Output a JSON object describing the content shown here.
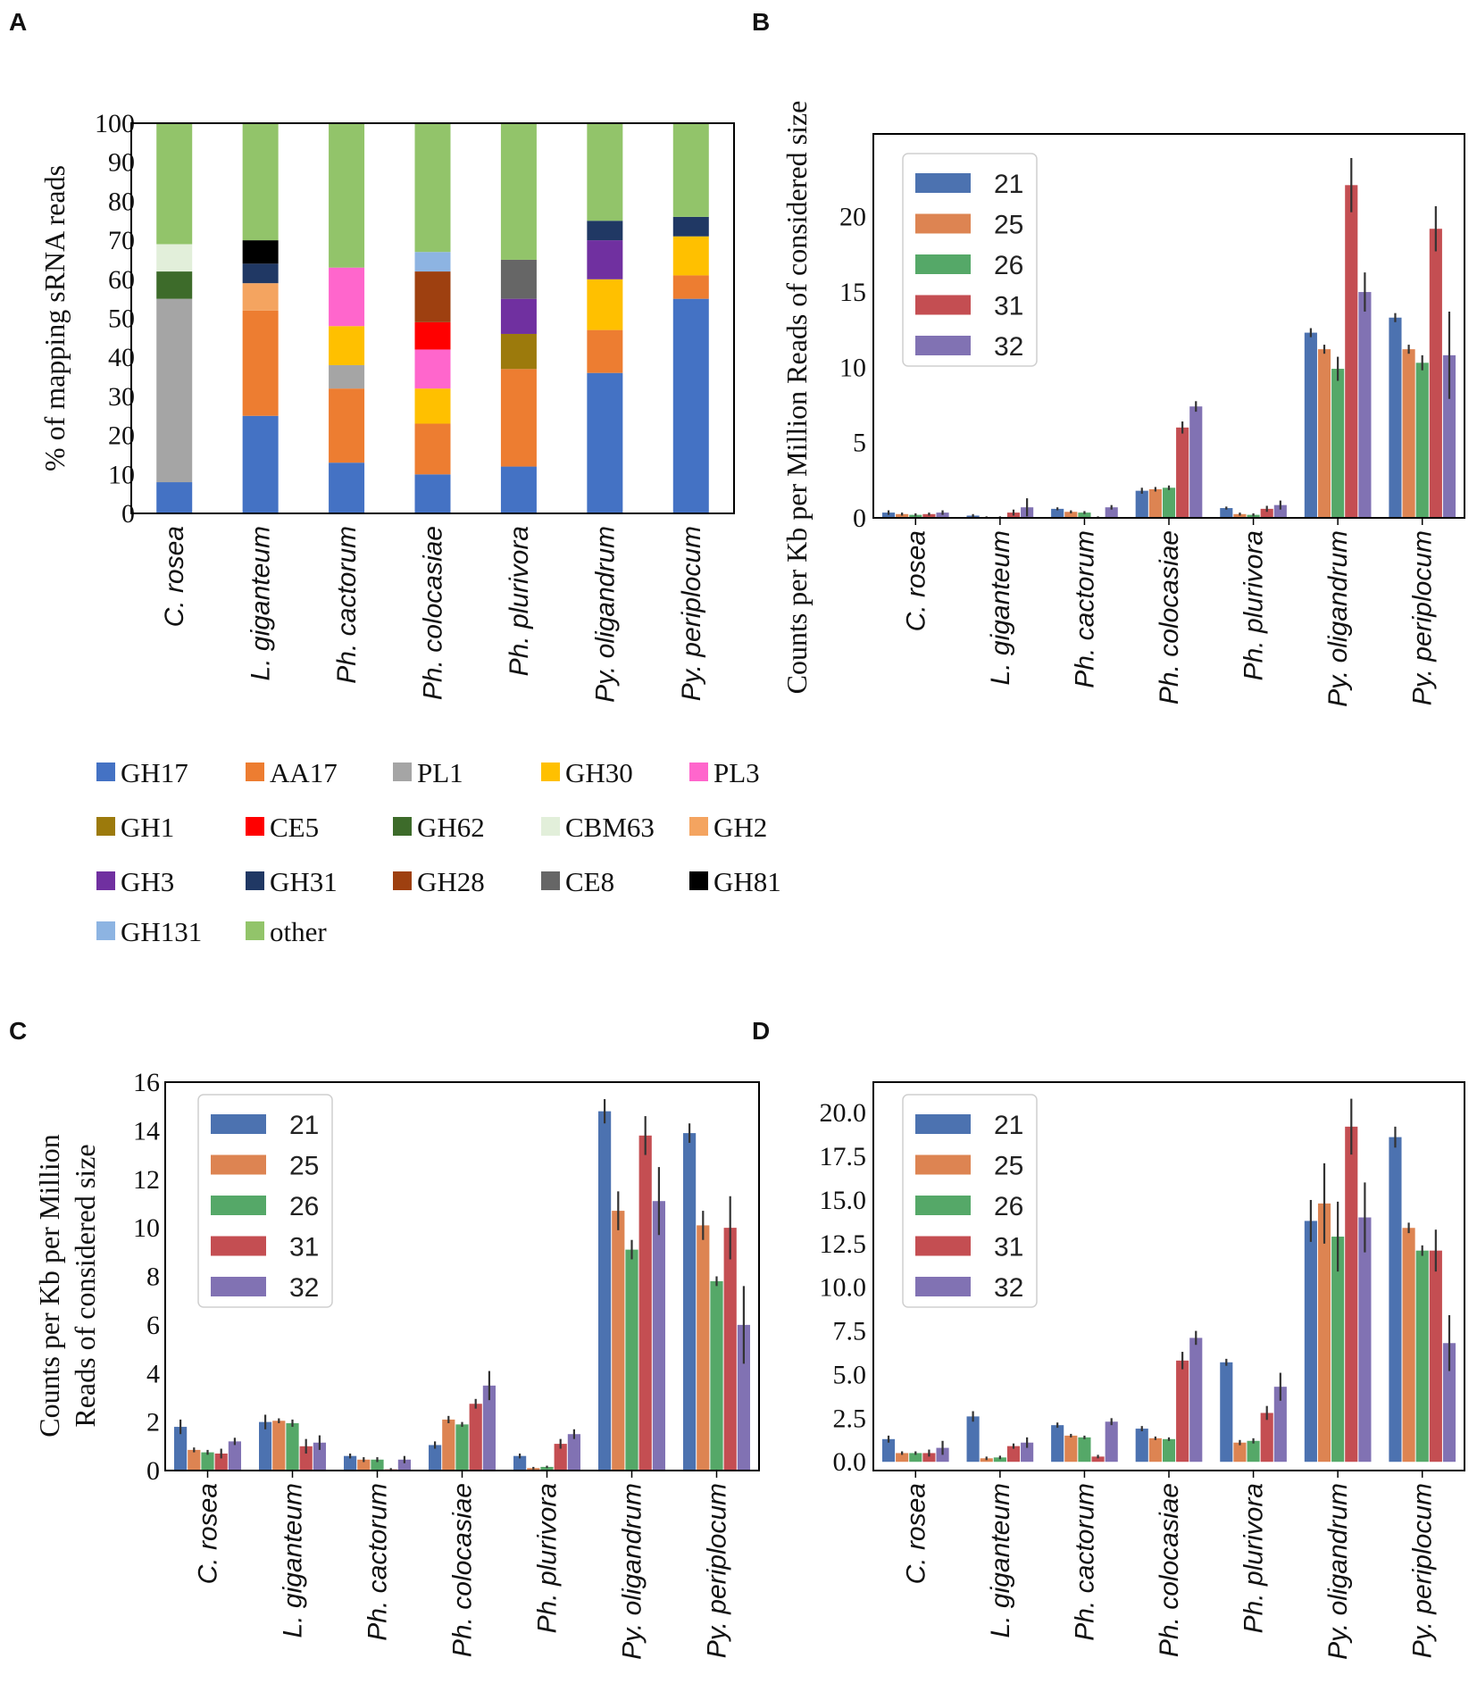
{
  "figure": {
    "panel_labels": [
      "A",
      "B",
      "C",
      "D"
    ],
    "categories": [
      "C. rosea",
      "L. giganteum",
      "Ph. cactorum",
      "Ph. colocasiae",
      "Ph. plurivora",
      "Py. oligandrum",
      "Py. periplocum"
    ]
  },
  "chart_data": [
    {
      "panel": "A",
      "type": "bar",
      "stacked": true,
      "title": "",
      "xlabel": "",
      "ylabel": "% of mapping sRNA reads",
      "ylim": [
        0,
        100
      ],
      "yticks": [
        0,
        10,
        20,
        30,
        40,
        50,
        60,
        70,
        80,
        90,
        100
      ],
      "categories": [
        "C. rosea",
        "L. giganteum",
        "Ph. cactorum",
        "Ph. colocasiae",
        "Ph. plurivora",
        "Py. oligandrum",
        "Py. periplocum"
      ],
      "legend_position": "bottom",
      "series": [
        {
          "name": "GH17",
          "color": "#4472c4",
          "values": [
            8,
            25,
            13,
            10,
            12,
            36,
            55
          ]
        },
        {
          "name": "AA17",
          "color": "#ed7d31",
          "values": [
            0,
            27,
            19,
            13,
            25,
            11,
            6
          ]
        },
        {
          "name": "PL1",
          "color": "#a5a5a5",
          "values": [
            47,
            0,
            6,
            0,
            0,
            0,
            0
          ]
        },
        {
          "name": "GH30",
          "color": "#ffc000",
          "values": [
            0,
            0,
            10,
            9,
            0,
            13,
            10
          ]
        },
        {
          "name": "PL3",
          "color": "#ff66cc",
          "values": [
            0,
            0,
            15,
            10,
            0,
            0,
            0
          ]
        },
        {
          "name": "GH1",
          "color": "#9c7a0c",
          "values": [
            0,
            0,
            0,
            0,
            9,
            0,
            0
          ]
        },
        {
          "name": "CE5",
          "color": "#ff0000",
          "values": [
            0,
            0,
            0,
            7,
            0,
            0,
            0
          ]
        },
        {
          "name": "GH62",
          "color": "#3d6b2a",
          "values": [
            7,
            0,
            0,
            0,
            0,
            0,
            0
          ]
        },
        {
          "name": "CBM63",
          "color": "#e2efda",
          "values": [
            7,
            0,
            0,
            0,
            0,
            0,
            0
          ]
        },
        {
          "name": "GH2",
          "color": "#f4a460",
          "values": [
            0,
            7,
            0,
            0,
            0,
            0,
            0
          ]
        },
        {
          "name": "GH3",
          "color": "#7030a0",
          "values": [
            0,
            0,
            0,
            0,
            9,
            10,
            0
          ]
        },
        {
          "name": "GH31",
          "color": "#203864",
          "values": [
            0,
            5,
            0,
            0,
            0,
            5,
            5
          ]
        },
        {
          "name": "GH28",
          "color": "#9e4010",
          "values": [
            0,
            0,
            0,
            13,
            0,
            0,
            0
          ]
        },
        {
          "name": "CE8",
          "color": "#666666",
          "values": [
            0,
            0,
            0,
            0,
            10,
            0,
            0
          ]
        },
        {
          "name": "GH81",
          "color": "#000000",
          "values": [
            0,
            6,
            0,
            0,
            0,
            0,
            0
          ]
        },
        {
          "name": "GH131",
          "color": "#8db4e2",
          "values": [
            0,
            0,
            0,
            5,
            0,
            0,
            0
          ]
        },
        {
          "name": "other",
          "color": "#92c46a",
          "values": [
            31,
            30,
            37,
            33,
            35,
            25,
            24
          ]
        }
      ]
    },
    {
      "panel": "B",
      "type": "bar",
      "title": "",
      "xlabel": "",
      "ylabel": "Counts per Kb per Million Reads of considered size",
      "ylim": [
        0,
        25.5
      ],
      "yticks": [
        "0",
        "5",
        "10",
        "15",
        "20"
      ],
      "categories": [
        "C. rosea",
        "L. giganteum",
        "Ph. cactorum",
        "Ph. colocasiae",
        "Ph. plurivora",
        "Py. oligandrum",
        "Py. periplocum"
      ],
      "legend_position": "top-left",
      "series": [
        {
          "name": "21",
          "color": "#4c72b0",
          "values": [
            0.35,
            0.15,
            0.6,
            1.8,
            0.65,
            12.3,
            13.3
          ],
          "errors": [
            0.15,
            0.1,
            0.1,
            0.2,
            0.1,
            0.3,
            0.3
          ]
        },
        {
          "name": "25",
          "color": "#dd8452",
          "values": [
            0.25,
            0.05,
            0.4,
            1.9,
            0.25,
            11.2,
            11.2
          ],
          "errors": [
            0.1,
            0.05,
            0.1,
            0.15,
            0.1,
            0.3,
            0.3
          ]
        },
        {
          "name": "26",
          "color": "#55a868",
          "values": [
            0.2,
            0.05,
            0.35,
            2.0,
            0.2,
            9.9,
            10.3
          ],
          "errors": [
            0.1,
            0.05,
            0.1,
            0.15,
            0.1,
            0.8,
            0.5
          ]
        },
        {
          "name": "31",
          "color": "#c44e52",
          "values": [
            0.25,
            0.35,
            0.05,
            6.0,
            0.6,
            22.1,
            19.2
          ],
          "errors": [
            0.1,
            0.2,
            0.05,
            0.4,
            0.2,
            1.8,
            1.5
          ]
        },
        {
          "name": "32",
          "color": "#8172b3",
          "values": [
            0.35,
            0.7,
            0.7,
            7.4,
            0.85,
            15.0,
            10.8
          ],
          "errors": [
            0.15,
            0.6,
            0.15,
            0.35,
            0.3,
            1.3,
            2.9
          ]
        }
      ]
    },
    {
      "panel": "C",
      "type": "bar",
      "title": "",
      "xlabel": "",
      "ylabel": "Counts per Kb per Million Reads of considered size",
      "ylabel_lines": [
        "Counts per Kb per Million",
        "Reads of considered size"
      ],
      "ylim": [
        0,
        16
      ],
      "yticks": [
        "0",
        "2",
        "4",
        "6",
        "8",
        "10",
        "12",
        "14",
        "16"
      ],
      "categories": [
        "C. rosea",
        "L. giganteum",
        "Ph. cactorum",
        "Ph. colocasiae",
        "Ph. plurivora",
        "Py. oligandrum",
        "Py. periplocum"
      ],
      "legend_position": "top-left",
      "series": [
        {
          "name": "21",
          "color": "#4c72b0",
          "values": [
            1.8,
            2.0,
            0.6,
            1.05,
            0.6,
            14.8,
            13.9
          ],
          "errors": [
            0.3,
            0.3,
            0.1,
            0.15,
            0.1,
            0.5,
            0.4
          ]
        },
        {
          "name": "25",
          "color": "#dd8452",
          "values": [
            0.85,
            2.05,
            0.45,
            2.1,
            0.1,
            10.7,
            10.1
          ],
          "errors": [
            0.1,
            0.1,
            0.1,
            0.15,
            0.05,
            0.8,
            0.6
          ]
        },
        {
          "name": "26",
          "color": "#55a868",
          "values": [
            0.75,
            1.95,
            0.45,
            1.9,
            0.15,
            9.1,
            7.8
          ],
          "errors": [
            0.1,
            0.15,
            0.1,
            0.1,
            0.05,
            0.4,
            0.2
          ]
        },
        {
          "name": "31",
          "color": "#c44e52",
          "values": [
            0.7,
            1.0,
            0.05,
            2.75,
            1.1,
            13.8,
            10.0
          ],
          "errors": [
            0.2,
            0.3,
            0.05,
            0.2,
            0.2,
            0.8,
            1.3
          ]
        },
        {
          "name": "32",
          "color": "#8172b3",
          "values": [
            1.2,
            1.15,
            0.45,
            3.5,
            1.5,
            11.1,
            6.0
          ],
          "errors": [
            0.15,
            0.3,
            0.15,
            0.6,
            0.2,
            1.4,
            1.6
          ]
        }
      ]
    },
    {
      "panel": "D",
      "type": "bar",
      "title": "",
      "xlabel": "",
      "ylabel": "",
      "ylim": [
        -0.5,
        21.75
      ],
      "yticks": [
        "0.0",
        "2.5",
        "5.0",
        "7.5",
        "10.0",
        "12.5",
        "15.0",
        "17.5",
        "20.0"
      ],
      "categories": [
        "C. rosea",
        "L. giganteum",
        "Ph. cactorum",
        "Ph. colocasiae",
        "Ph. plurivora",
        "Py. oligandrum",
        "Py. periplocum"
      ],
      "legend_position": "top-left",
      "series": [
        {
          "name": "21",
          "color": "#4c72b0",
          "values": [
            1.3,
            2.6,
            2.1,
            1.9,
            5.7,
            13.8,
            18.6
          ],
          "errors": [
            0.2,
            0.3,
            0.15,
            0.15,
            0.2,
            1.2,
            0.6
          ]
        },
        {
          "name": "25",
          "color": "#dd8452",
          "values": [
            0.5,
            0.2,
            1.5,
            1.35,
            1.1,
            14.8,
            13.4
          ],
          "errors": [
            0.1,
            0.1,
            0.1,
            0.1,
            0.15,
            2.3,
            0.3
          ]
        },
        {
          "name": "26",
          "color": "#55a868",
          "values": [
            0.5,
            0.25,
            1.4,
            1.3,
            1.2,
            12.9,
            12.1
          ],
          "errors": [
            0.1,
            0.1,
            0.1,
            0.1,
            0.15,
            2.0,
            0.3
          ]
        },
        {
          "name": "31",
          "color": "#c44e52",
          "values": [
            0.5,
            0.9,
            0.3,
            5.8,
            2.8,
            19.2,
            12.1
          ],
          "errors": [
            0.2,
            0.15,
            0.1,
            0.5,
            0.4,
            1.6,
            1.2
          ]
        },
        {
          "name": "32",
          "color": "#8172b3",
          "values": [
            0.8,
            1.1,
            2.3,
            7.1,
            4.3,
            14.0,
            6.8
          ],
          "errors": [
            0.4,
            0.3,
            0.2,
            0.4,
            0.8,
            2.0,
            1.6
          ]
        }
      ]
    }
  ]
}
